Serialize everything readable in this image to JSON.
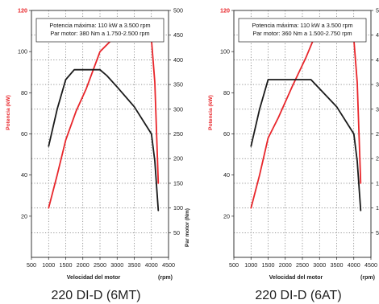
{
  "chart_data": [
    {
      "type": "line",
      "model_label": "220 DI-D (6MT)",
      "legend_lines": [
        "Potencia máxima: 110 kW a 3.500 rpm",
        "Par motor: 380 Nm a 1.750-2.500 rpm"
      ],
      "xlabel": "Velocidad del motor",
      "xunit": "(rpm)",
      "ylabel_left": "Potencia (kW)",
      "ylabel_right": "Par motor (Nm)",
      "xlim": [
        500,
        4500
      ],
      "ylim_left": [
        0,
        120
      ],
      "ylim_right": [
        0,
        500
      ],
      "x_ticks": [
        500,
        1000,
        1500,
        2000,
        2500,
        3000,
        3500,
        4000,
        4500
      ],
      "y_ticks_left": [
        20,
        40,
        60,
        80,
        100,
        120
      ],
      "y_ticks_right": [
        50,
        100,
        150,
        200,
        250,
        300,
        350,
        400,
        450,
        500
      ],
      "grid": true,
      "series": [
        {
          "axis": "left",
          "color": "#e8262b",
          "x": [
            1000,
            1250,
            1500,
            1800,
            2100,
            2500,
            2800,
            3100,
            3400,
            3600,
            3800,
            4000,
            4100,
            4200
          ],
          "y": [
            24,
            40,
            57,
            71,
            82,
            100,
            105,
            108,
            110,
            110,
            109,
            106,
            85,
            36
          ]
        },
        {
          "axis": "right",
          "color": "#1a1a1a",
          "x": [
            1000,
            1250,
            1500,
            1750,
            2500,
            2700,
            3000,
            3500,
            4000,
            4100,
            4200
          ],
          "y": [
            225,
            300,
            360,
            380,
            380,
            368,
            345,
            305,
            250,
            195,
            95
          ]
        }
      ]
    },
    {
      "type": "line",
      "model_label": "220 DI-D (6AT)",
      "legend_lines": [
        "Potencia máxima: 110 kW a 3.500 rpm",
        "Par motor: 360 Nm a 1.500-2.750 rpm"
      ],
      "xlabel": "Velocidad del motor",
      "xunit": "(rpm)",
      "ylabel_left": "Potencia (kW)",
      "ylabel_right": "Par motor (Nm)",
      "xlim": [
        500,
        4500
      ],
      "ylim_left": [
        0,
        120
      ],
      "ylim_right": [
        0,
        500
      ],
      "x_ticks": [
        500,
        1000,
        1500,
        2000,
        2500,
        3000,
        3500,
        4000,
        4500
      ],
      "y_ticks_left": [
        20,
        40,
        60,
        80,
        100,
        120
      ],
      "y_ticks_right": [
        50,
        100,
        150,
        200,
        250,
        300,
        350,
        400,
        450,
        500
      ],
      "grid": true,
      "series": [
        {
          "axis": "left",
          "color": "#e8262b",
          "x": [
            1000,
            1250,
            1500,
            1800,
            2200,
            2600,
            2800,
            3100,
            3400,
            3600,
            3800,
            4000,
            4100,
            4200
          ],
          "y": [
            24,
            40,
            58,
            68,
            83,
            97,
            105,
            108,
            110,
            110,
            109,
            106,
            85,
            36
          ]
        },
        {
          "axis": "right",
          "color": "#1a1a1a",
          "x": [
            1000,
            1250,
            1500,
            2750,
            3500,
            4000,
            4100,
            4200
          ],
          "y": [
            225,
            300,
            360,
            360,
            305,
            250,
            195,
            95
          ]
        }
      ]
    }
  ]
}
